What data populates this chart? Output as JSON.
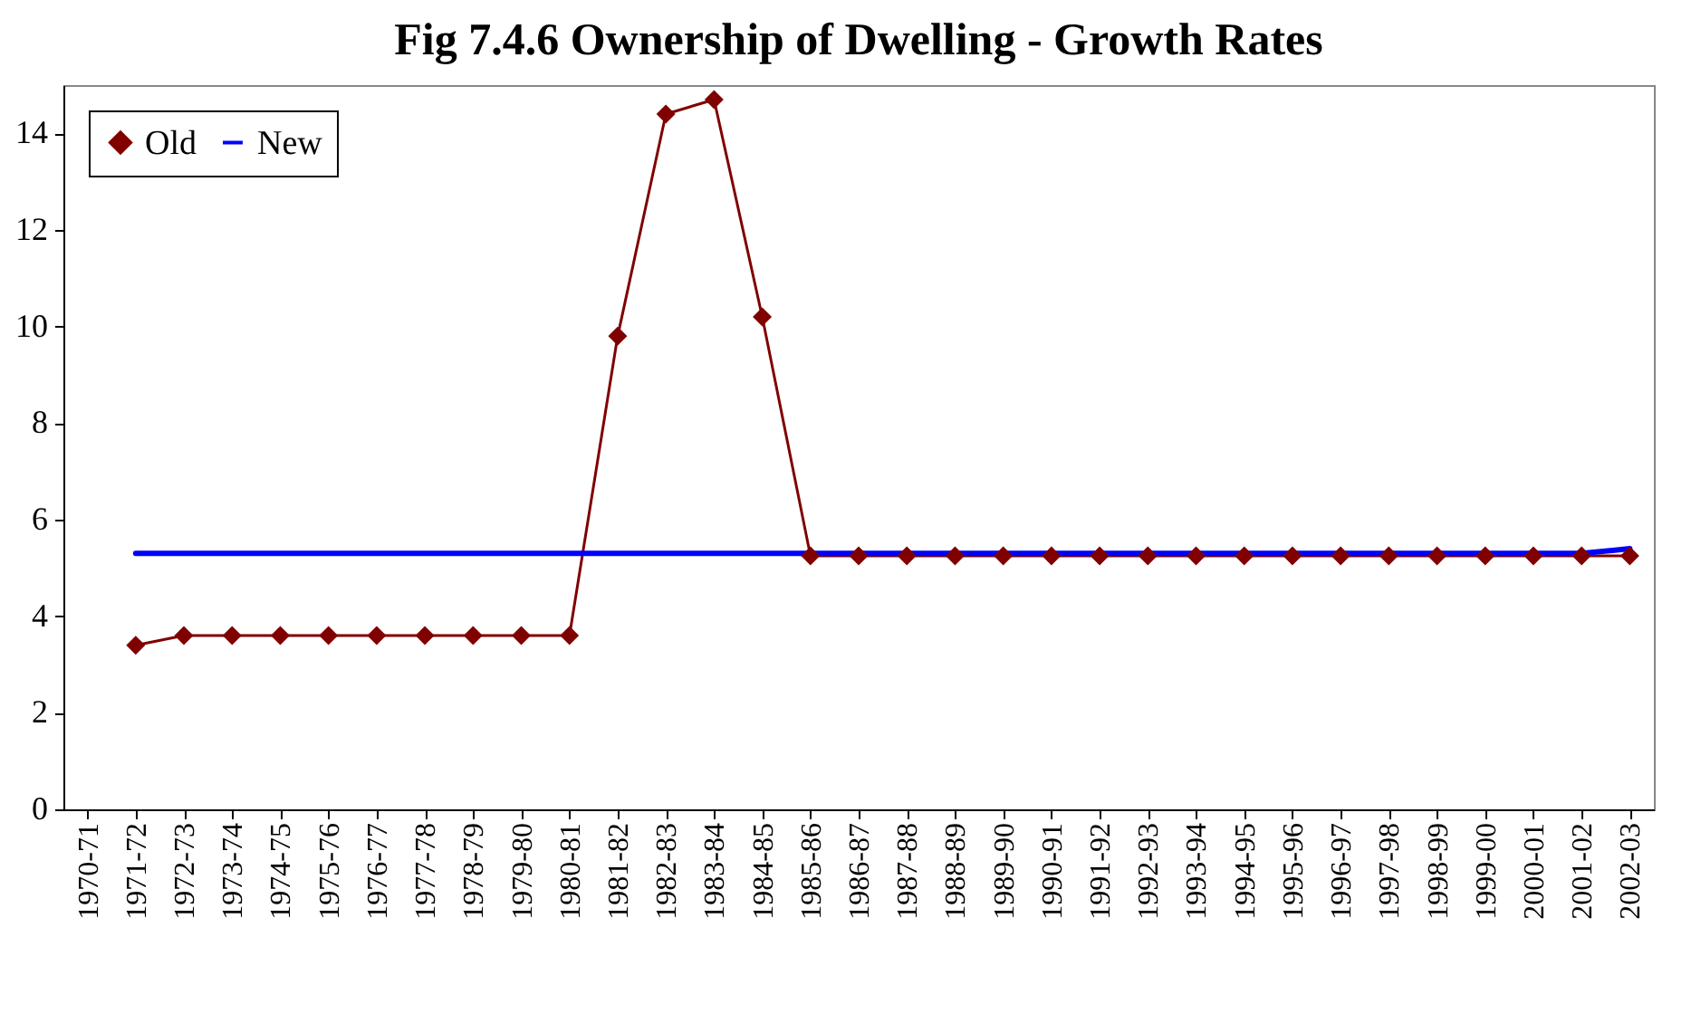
{
  "chart_data": {
    "type": "line",
    "title": "Fig 7.4.6 Ownership of Dwelling - Growth Rates",
    "categories": [
      "1970-71",
      "1971-72",
      "1972-73",
      "1973-74",
      "1974-75",
      "1975-76",
      "1976-77",
      "1977-78",
      "1978-79",
      "1979-80",
      "1980-81",
      "1981-82",
      "1982-83",
      "1983-84",
      "1984-85",
      "1985-86",
      "1986-87",
      "1987-88",
      "1988-89",
      "1989-90",
      "1990-91",
      "1991-92",
      "1992-93",
      "1993-94",
      "1994-95",
      "1995-96",
      "1996-97",
      "1997-98",
      "1998-99",
      "1999-00",
      "2000-01",
      "2001-02",
      "2002-03"
    ],
    "series": [
      {
        "name": "Old",
        "color": "#800000",
        "marker": "diamond",
        "values": [
          null,
          3.4,
          3.6,
          3.6,
          3.6,
          3.6,
          3.6,
          3.6,
          3.6,
          3.6,
          3.6,
          9.8,
          14.4,
          14.7,
          10.2,
          5.25,
          5.25,
          5.25,
          5.25,
          5.25,
          5.25,
          5.25,
          5.25,
          5.25,
          5.25,
          5.25,
          5.25,
          5.25,
          5.25,
          5.25,
          5.25,
          5.25,
          5.25
        ]
      },
      {
        "name": "New",
        "color": "#0000ff",
        "marker": "none",
        "values": [
          null,
          5.3,
          5.3,
          5.3,
          5.3,
          5.3,
          5.3,
          5.3,
          5.3,
          5.3,
          5.3,
          5.3,
          5.3,
          5.3,
          5.3,
          5.3,
          5.3,
          5.3,
          5.3,
          5.3,
          5.3,
          5.3,
          5.3,
          5.3,
          5.3,
          5.3,
          5.3,
          5.3,
          5.3,
          5.3,
          5.3,
          5.3,
          5.4
        ]
      }
    ],
    "ylim": [
      0,
      15
    ],
    "yticks": [
      0,
      2,
      4,
      6,
      8,
      10,
      12,
      14
    ],
    "grid": false,
    "legend": "top left"
  }
}
